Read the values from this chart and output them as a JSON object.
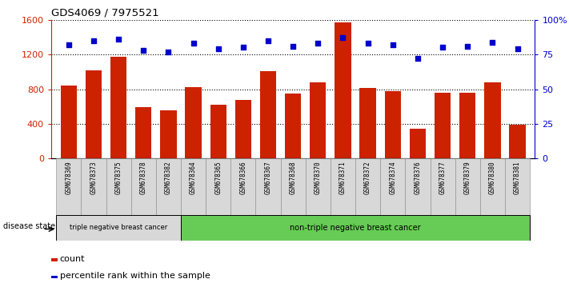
{
  "title": "GDS4069 / 7975521",
  "samples": [
    "GSM678369",
    "GSM678373",
    "GSM678375",
    "GSM678378",
    "GSM678382",
    "GSM678364",
    "GSM678365",
    "GSM678366",
    "GSM678367",
    "GSM678368",
    "GSM678370",
    "GSM678371",
    "GSM678372",
    "GSM678374",
    "GSM678376",
    "GSM678377",
    "GSM678379",
    "GSM678380",
    "GSM678381"
  ],
  "counts": [
    840,
    1020,
    1170,
    590,
    555,
    820,
    620,
    680,
    1010,
    750,
    880,
    1570,
    810,
    775,
    340,
    760,
    755,
    880,
    390
  ],
  "percentiles": [
    82,
    85,
    86,
    78,
    77,
    83,
    79,
    80,
    85,
    81,
    83,
    87,
    83,
    82,
    72,
    80,
    81,
    84,
    79
  ],
  "group1_count": 5,
  "group1_label": "triple negative breast cancer",
  "group2_label": "non-triple negative breast cancer",
  "bar_color": "#cc2200",
  "dot_color": "#0000cc",
  "ylim_left": [
    0,
    1600
  ],
  "ylim_right": [
    0,
    100
  ],
  "yticks_left": [
    0,
    400,
    800,
    1200,
    1600
  ],
  "yticks_right": [
    0,
    25,
    50,
    75,
    100
  ],
  "ytick_labels_right": [
    "0",
    "25",
    "50",
    "75",
    "100%"
  ],
  "group1_color": "#d8d8d8",
  "group2_color": "#66cc55",
  "disease_state_label": "disease state",
  "legend_count_label": "count",
  "legend_percentile_label": "percentile rank within the sample"
}
